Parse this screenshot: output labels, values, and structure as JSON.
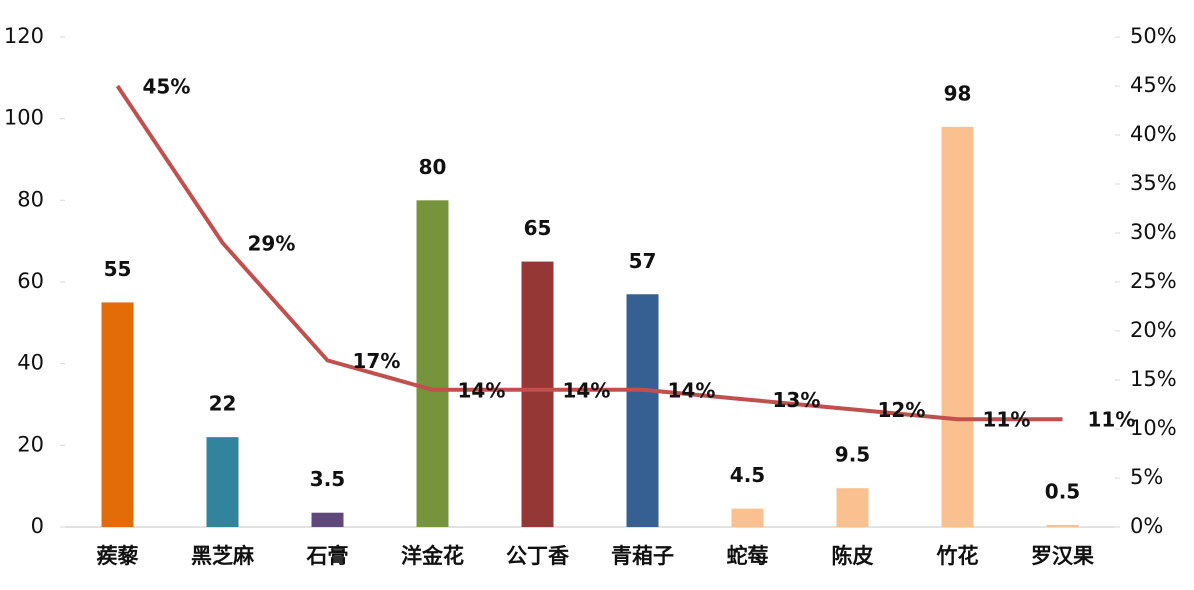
{
  "chart_data": {
    "type": "bar",
    "categories": [
      "蒺藜",
      "黑芝麻",
      "石膏",
      "洋金花",
      "公丁香",
      "青葙子",
      "蛇莓",
      "陈皮",
      "竹花",
      "罗汉果"
    ],
    "values": [
      55,
      22,
      3.5,
      80,
      65,
      57,
      4.5,
      9.5,
      98,
      0.5
    ],
    "colors": [
      "#e36c09",
      "#31849b",
      "#5f497a",
      "#77933c",
      "#953735",
      "#376092",
      "#fac090",
      "#fac090",
      "#fac090",
      "#fac090"
    ],
    "ylim": [
      0,
      120
    ],
    "yticks": [
      0,
      20,
      40,
      60,
      80,
      100,
      120
    ],
    "y2lim": [
      0,
      50
    ],
    "y2ticks": [
      {
        "value": 0,
        "label": "0%"
      },
      {
        "value": 5,
        "label": "5%"
      },
      {
        "value": 10,
        "label": "10%"
      },
      {
        "value": 15,
        "label": "15%"
      },
      {
        "value": 20,
        "label": "20%"
      },
      {
        "value": 25,
        "label": "25%"
      },
      {
        "value": 30,
        "label": "30%"
      },
      {
        "value": 35,
        "label": "35%"
      },
      {
        "value": 40,
        "label": "40%"
      },
      {
        "value": 45,
        "label": "45%"
      },
      {
        "value": 50,
        "label": "50%"
      }
    ],
    "line": {
      "type": "line",
      "axis": "y2",
      "color": "#c0504d",
      "values": [
        45,
        29,
        17,
        14,
        14,
        14,
        13,
        12,
        11,
        11
      ],
      "value_labels": [
        "45%",
        "29%",
        "17%",
        "14%",
        "14%",
        "14%",
        "13%",
        "12%",
        "11%",
        "11%"
      ]
    }
  }
}
